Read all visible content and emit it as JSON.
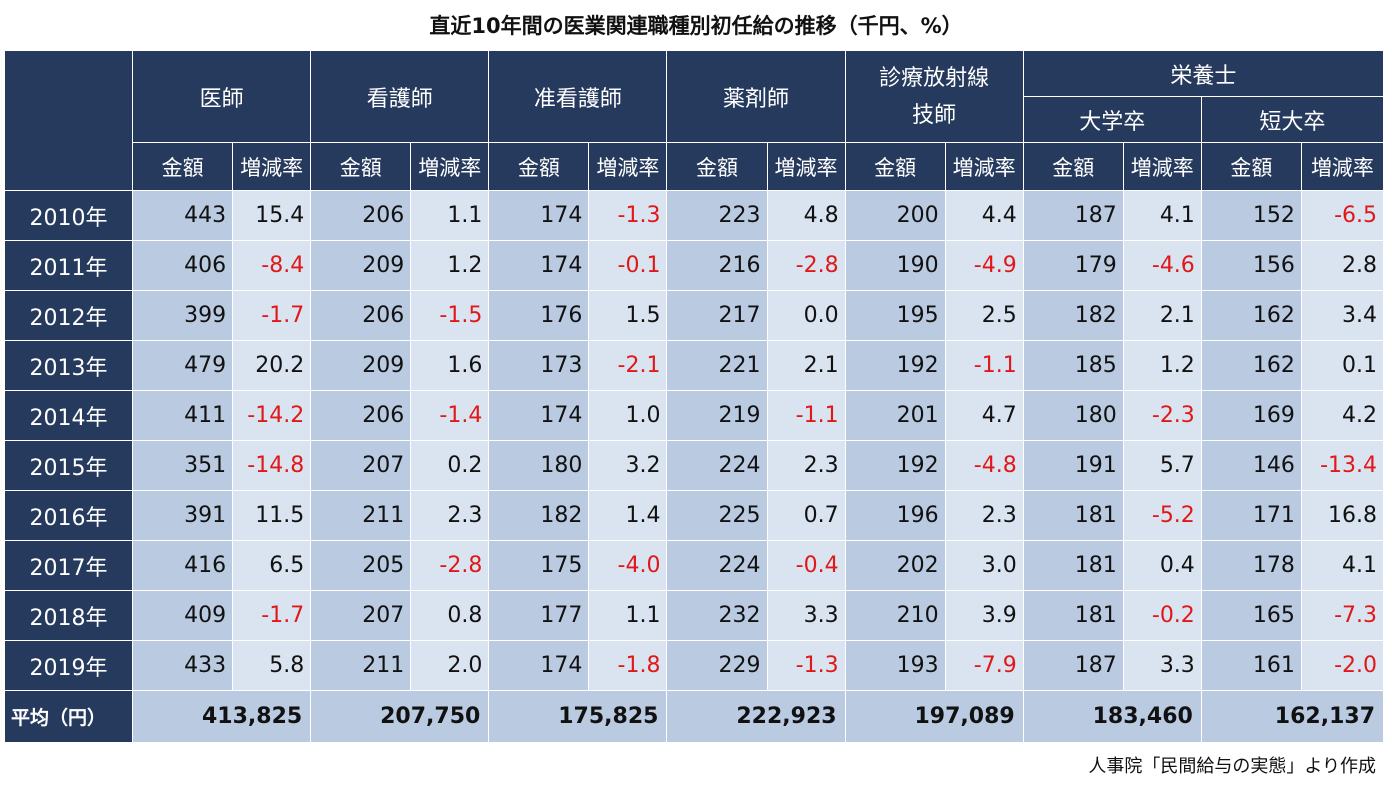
{
  "title": "直近10年間の医業関連職種別初任給の推移（千円、%）",
  "source": "人事院「民間給与の実態」より作成",
  "headers": {
    "ishi": "医師",
    "kango": "看護師",
    "junkango": "准看護師",
    "yakuzai": "薬剤師",
    "shinryo_line1": "診療放射線",
    "shinryo_line2": "技師",
    "eiyo": "栄養士",
    "eiyo_univ": "大学卒",
    "eiyo_junior": "短大卒",
    "amount": "金額",
    "rate": "増減率"
  },
  "average_label": "平均（円）",
  "chart_data": {
    "type": "table",
    "title": "直近10年間の医業関連職種別初任給の推移（千円、%）",
    "columns": [
      "医師",
      "看護師",
      "准看護師",
      "薬剤師",
      "診療放射線技師",
      "栄養士 大学卒",
      "栄養士 短大卒"
    ],
    "rows": [
      {
        "year": "2010年",
        "values": [
          [
            "443",
            "15.4"
          ],
          [
            "206",
            "1.1"
          ],
          [
            "174",
            "-1.3"
          ],
          [
            "223",
            "4.8"
          ],
          [
            "200",
            "4.4"
          ],
          [
            "187",
            "4.1"
          ],
          [
            "152",
            "-6.5"
          ]
        ]
      },
      {
        "year": "2011年",
        "values": [
          [
            "406",
            "-8.4"
          ],
          [
            "209",
            "1.2"
          ],
          [
            "174",
            "-0.1"
          ],
          [
            "216",
            "-2.8"
          ],
          [
            "190",
            "-4.9"
          ],
          [
            "179",
            "-4.6"
          ],
          [
            "156",
            "2.8"
          ]
        ]
      },
      {
        "year": "2012年",
        "values": [
          [
            "399",
            "-1.7"
          ],
          [
            "206",
            "-1.5"
          ],
          [
            "176",
            "1.5"
          ],
          [
            "217",
            "0.0"
          ],
          [
            "195",
            "2.5"
          ],
          [
            "182",
            "2.1"
          ],
          [
            "162",
            "3.4"
          ]
        ]
      },
      {
        "year": "2013年",
        "values": [
          [
            "479",
            "20.2"
          ],
          [
            "209",
            "1.6"
          ],
          [
            "173",
            "-2.1"
          ],
          [
            "221",
            "2.1"
          ],
          [
            "192",
            "-1.1"
          ],
          [
            "185",
            "1.2"
          ],
          [
            "162",
            "0.1"
          ]
        ]
      },
      {
        "year": "2014年",
        "values": [
          [
            "411",
            "-14.2"
          ],
          [
            "206",
            "-1.4"
          ],
          [
            "174",
            "1.0"
          ],
          [
            "219",
            "-1.1"
          ],
          [
            "201",
            "4.7"
          ],
          [
            "180",
            "-2.3"
          ],
          [
            "169",
            "4.2"
          ]
        ]
      },
      {
        "year": "2015年",
        "values": [
          [
            "351",
            "-14.8"
          ],
          [
            "207",
            "0.2"
          ],
          [
            "180",
            "3.2"
          ],
          [
            "224",
            "2.3"
          ],
          [
            "192",
            "-4.8"
          ],
          [
            "191",
            "5.7"
          ],
          [
            "146",
            "-13.4"
          ]
        ]
      },
      {
        "year": "2016年",
        "values": [
          [
            "391",
            "11.5"
          ],
          [
            "211",
            "2.3"
          ],
          [
            "182",
            "1.4"
          ],
          [
            "225",
            "0.7"
          ],
          [
            "196",
            "2.3"
          ],
          [
            "181",
            "-5.2"
          ],
          [
            "171",
            "16.8"
          ]
        ]
      },
      {
        "year": "2017年",
        "values": [
          [
            "416",
            "6.5"
          ],
          [
            "205",
            "-2.8"
          ],
          [
            "175",
            "-4.0"
          ],
          [
            "224",
            "-0.4"
          ],
          [
            "202",
            "3.0"
          ],
          [
            "181",
            "0.4"
          ],
          [
            "178",
            "4.1"
          ]
        ]
      },
      {
        "year": "2018年",
        "values": [
          [
            "409",
            "-1.7"
          ],
          [
            "207",
            "0.8"
          ],
          [
            "177",
            "1.1"
          ],
          [
            "232",
            "3.3"
          ],
          [
            "210",
            "3.9"
          ],
          [
            "181",
            "-0.2"
          ],
          [
            "165",
            "-7.3"
          ]
        ]
      },
      {
        "year": "2019年",
        "values": [
          [
            "433",
            "5.8"
          ],
          [
            "211",
            "2.0"
          ],
          [
            "174",
            "-1.8"
          ],
          [
            "229",
            "-1.3"
          ],
          [
            "193",
            "-7.9"
          ],
          [
            "187",
            "3.3"
          ],
          [
            "161",
            "-2.0"
          ]
        ]
      }
    ],
    "averages": [
      "413,825",
      "207,750",
      "175,825",
      "222,923",
      "197,089",
      "183,460",
      "162,137"
    ],
    "negative_color": "#e01818",
    "header_color": "#263a5e",
    "amount_cell_color": "#b9cae1",
    "rate_cell_color": "#dae3f0"
  }
}
